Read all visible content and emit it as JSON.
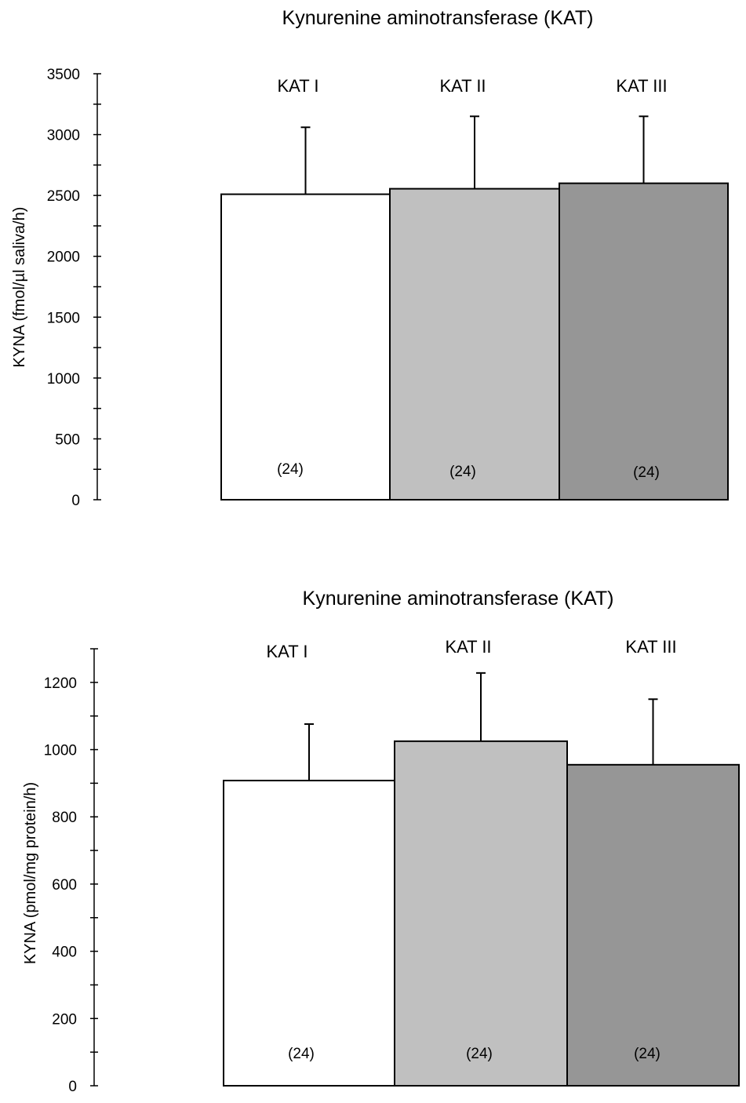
{
  "chart_data": [
    {
      "type": "bar",
      "title": "Kynurenine aminotransferase (KAT)",
      "ylabel": "KYNA (fmol/µl saliva/h)",
      "xlabel": "",
      "ylim": [
        0,
        3500
      ],
      "yticks": [
        0,
        500,
        1000,
        1500,
        2000,
        2500,
        3000,
        3500
      ],
      "minor_tick_step": 250,
      "grid": false,
      "categories": [
        "KAT I",
        "KAT II",
        "KAT III"
      ],
      "values": [
        2510,
        2555,
        2600
      ],
      "errors": [
        550,
        595,
        550
      ],
      "n_labels": [
        "(24)",
        "(24)",
        "(24)"
      ],
      "colors": [
        "#ffffff",
        "#c0c0c0",
        "#969696"
      ]
    },
    {
      "type": "bar",
      "title": "Kynurenine aminotransferase  (KAT)",
      "ylabel": "KYNA (pmol/mg protein/h)",
      "xlabel": "",
      "ylim": [
        0,
        1300
      ],
      "yticks": [
        0,
        200,
        400,
        600,
        800,
        1000,
        1200
      ],
      "minor_tick_step": 100,
      "grid": false,
      "categories": [
        "KAT I",
        "KAT II",
        "KAT III"
      ],
      "values": [
        908,
        1025,
        955
      ],
      "errors": [
        168,
        203,
        195
      ],
      "n_labels": [
        "(24)",
        "(24)",
        "(24)"
      ],
      "colors": [
        "#ffffff",
        "#c0c0c0",
        "#969696"
      ]
    }
  ]
}
